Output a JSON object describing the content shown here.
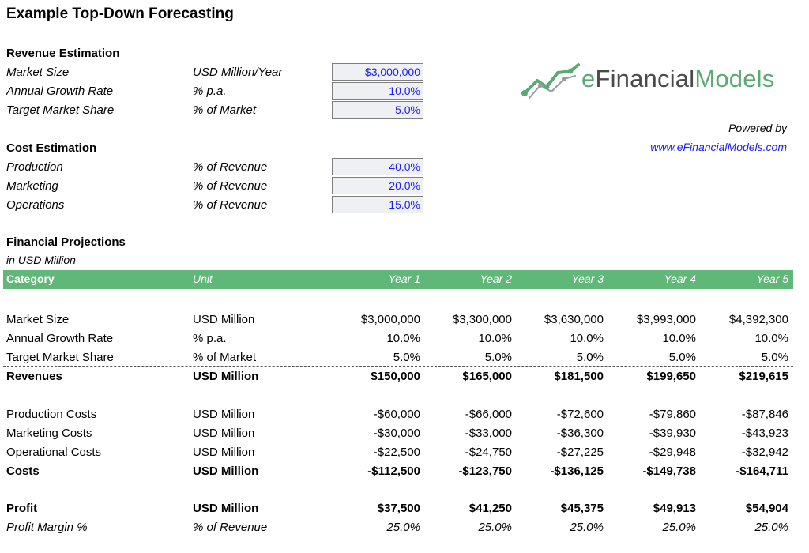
{
  "title": "Example Top-Down Forecasting",
  "revenue_estimation": {
    "heading": "Revenue Estimation",
    "rows": [
      {
        "label": "Market Size",
        "unit": "USD Million/Year",
        "value": "$3,000,000"
      },
      {
        "label": "Annual Growth Rate",
        "unit": "% p.a.",
        "value": "10.0%"
      },
      {
        "label": "Target Market Share",
        "unit": "% of Market",
        "value": "5.0%"
      }
    ]
  },
  "cost_estimation": {
    "heading": "Cost Estimation",
    "rows": [
      {
        "label": "Production",
        "unit": "% of Revenue",
        "value": "40.0%"
      },
      {
        "label": "Marketing",
        "unit": "% of Revenue",
        "value": "20.0%"
      },
      {
        "label": "Operations",
        "unit": "% of Revenue",
        "value": "15.0%"
      }
    ]
  },
  "logo": {
    "text_prefix": "e",
    "text_main": "Financial",
    "text_suffix": "Models",
    "accent": "#5aaa73"
  },
  "powered_by": "Powered by",
  "website": "www.eFinancialModels.com",
  "projections": {
    "heading": "Financial Projections",
    "subheading": "in USD Million",
    "header": {
      "category": "Category",
      "unit": "Unit",
      "years": [
        "Year 1",
        "Year 2",
        "Year 3",
        "Year 4",
        "Year 5"
      ]
    },
    "header_color": "#5fb878",
    "rows": [
      {
        "label": "Market Size",
        "unit": "USD Million",
        "values": [
          "$3,000,000",
          "$3,300,000",
          "$3,630,000",
          "$3,993,000",
          "$4,392,300"
        ]
      },
      {
        "label": "Annual Growth Rate",
        "unit": "% p.a.",
        "values": [
          "10.0%",
          "10.0%",
          "10.0%",
          "10.0%",
          "10.0%"
        ]
      },
      {
        "label": "Target Market Share",
        "unit": "% of Market",
        "values": [
          "5.0%",
          "5.0%",
          "5.0%",
          "5.0%",
          "5.0%"
        ]
      },
      {
        "label": "Revenues",
        "unit": "USD Million",
        "values": [
          "$150,000",
          "$165,000",
          "$181,500",
          "$199,650",
          "$219,615"
        ]
      },
      {
        "label": "Production Costs",
        "unit": "USD Million",
        "values": [
          "-$60,000",
          "-$66,000",
          "-$72,600",
          "-$79,860",
          "-$87,846"
        ]
      },
      {
        "label": "Marketing Costs",
        "unit": "USD Million",
        "values": [
          "-$30,000",
          "-$33,000",
          "-$36,300",
          "-$39,930",
          "-$43,923"
        ]
      },
      {
        "label": "Operational Costs",
        "unit": "USD Million",
        "values": [
          "-$22,500",
          "-$24,750",
          "-$27,225",
          "-$29,948",
          "-$32,942"
        ]
      },
      {
        "label": "Costs",
        "unit": "USD Million",
        "values": [
          "-$112,500",
          "-$123,750",
          "-$136,125",
          "-$149,738",
          "-$164,711"
        ]
      },
      {
        "label": "Profit",
        "unit": "USD Million",
        "values": [
          "$37,500",
          "$41,250",
          "$45,375",
          "$49,913",
          "$54,904"
        ]
      },
      {
        "label": "Profit Margin %",
        "unit": "% of Revenue",
        "values": [
          "25.0%",
          "25.0%",
          "25.0%",
          "25.0%",
          "25.0%"
        ]
      }
    ]
  }
}
